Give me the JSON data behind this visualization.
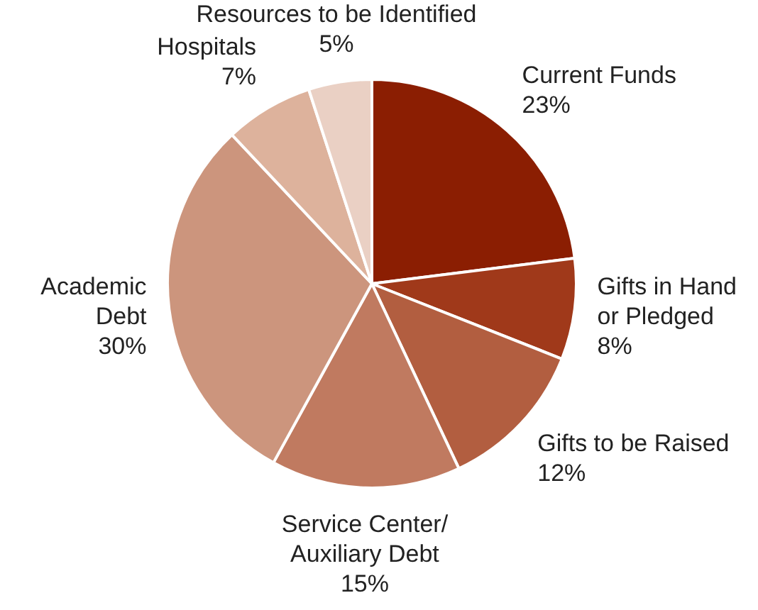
{
  "chart_data": {
    "type": "pie",
    "categories": [
      "Current Funds",
      "Gifts in Hand\nor Pledged",
      "Gifts to be Raised",
      "Service Center/\nAuxiliary Debt",
      "Academic\nDebt",
      "Hospitals",
      "Resources to be Identified"
    ],
    "values": [
      23,
      8,
      12,
      15,
      30,
      7,
      5
    ],
    "colors": [
      "#8b1e02",
      "#a0391a",
      "#b25e40",
      "#c07a60",
      "#cc957d",
      "#ddb29c",
      "#ead0c4"
    ],
    "value_labels": [
      "23%",
      "8%",
      "12%",
      "15%",
      "30%",
      "7%",
      "5%"
    ],
    "legend": false
  }
}
